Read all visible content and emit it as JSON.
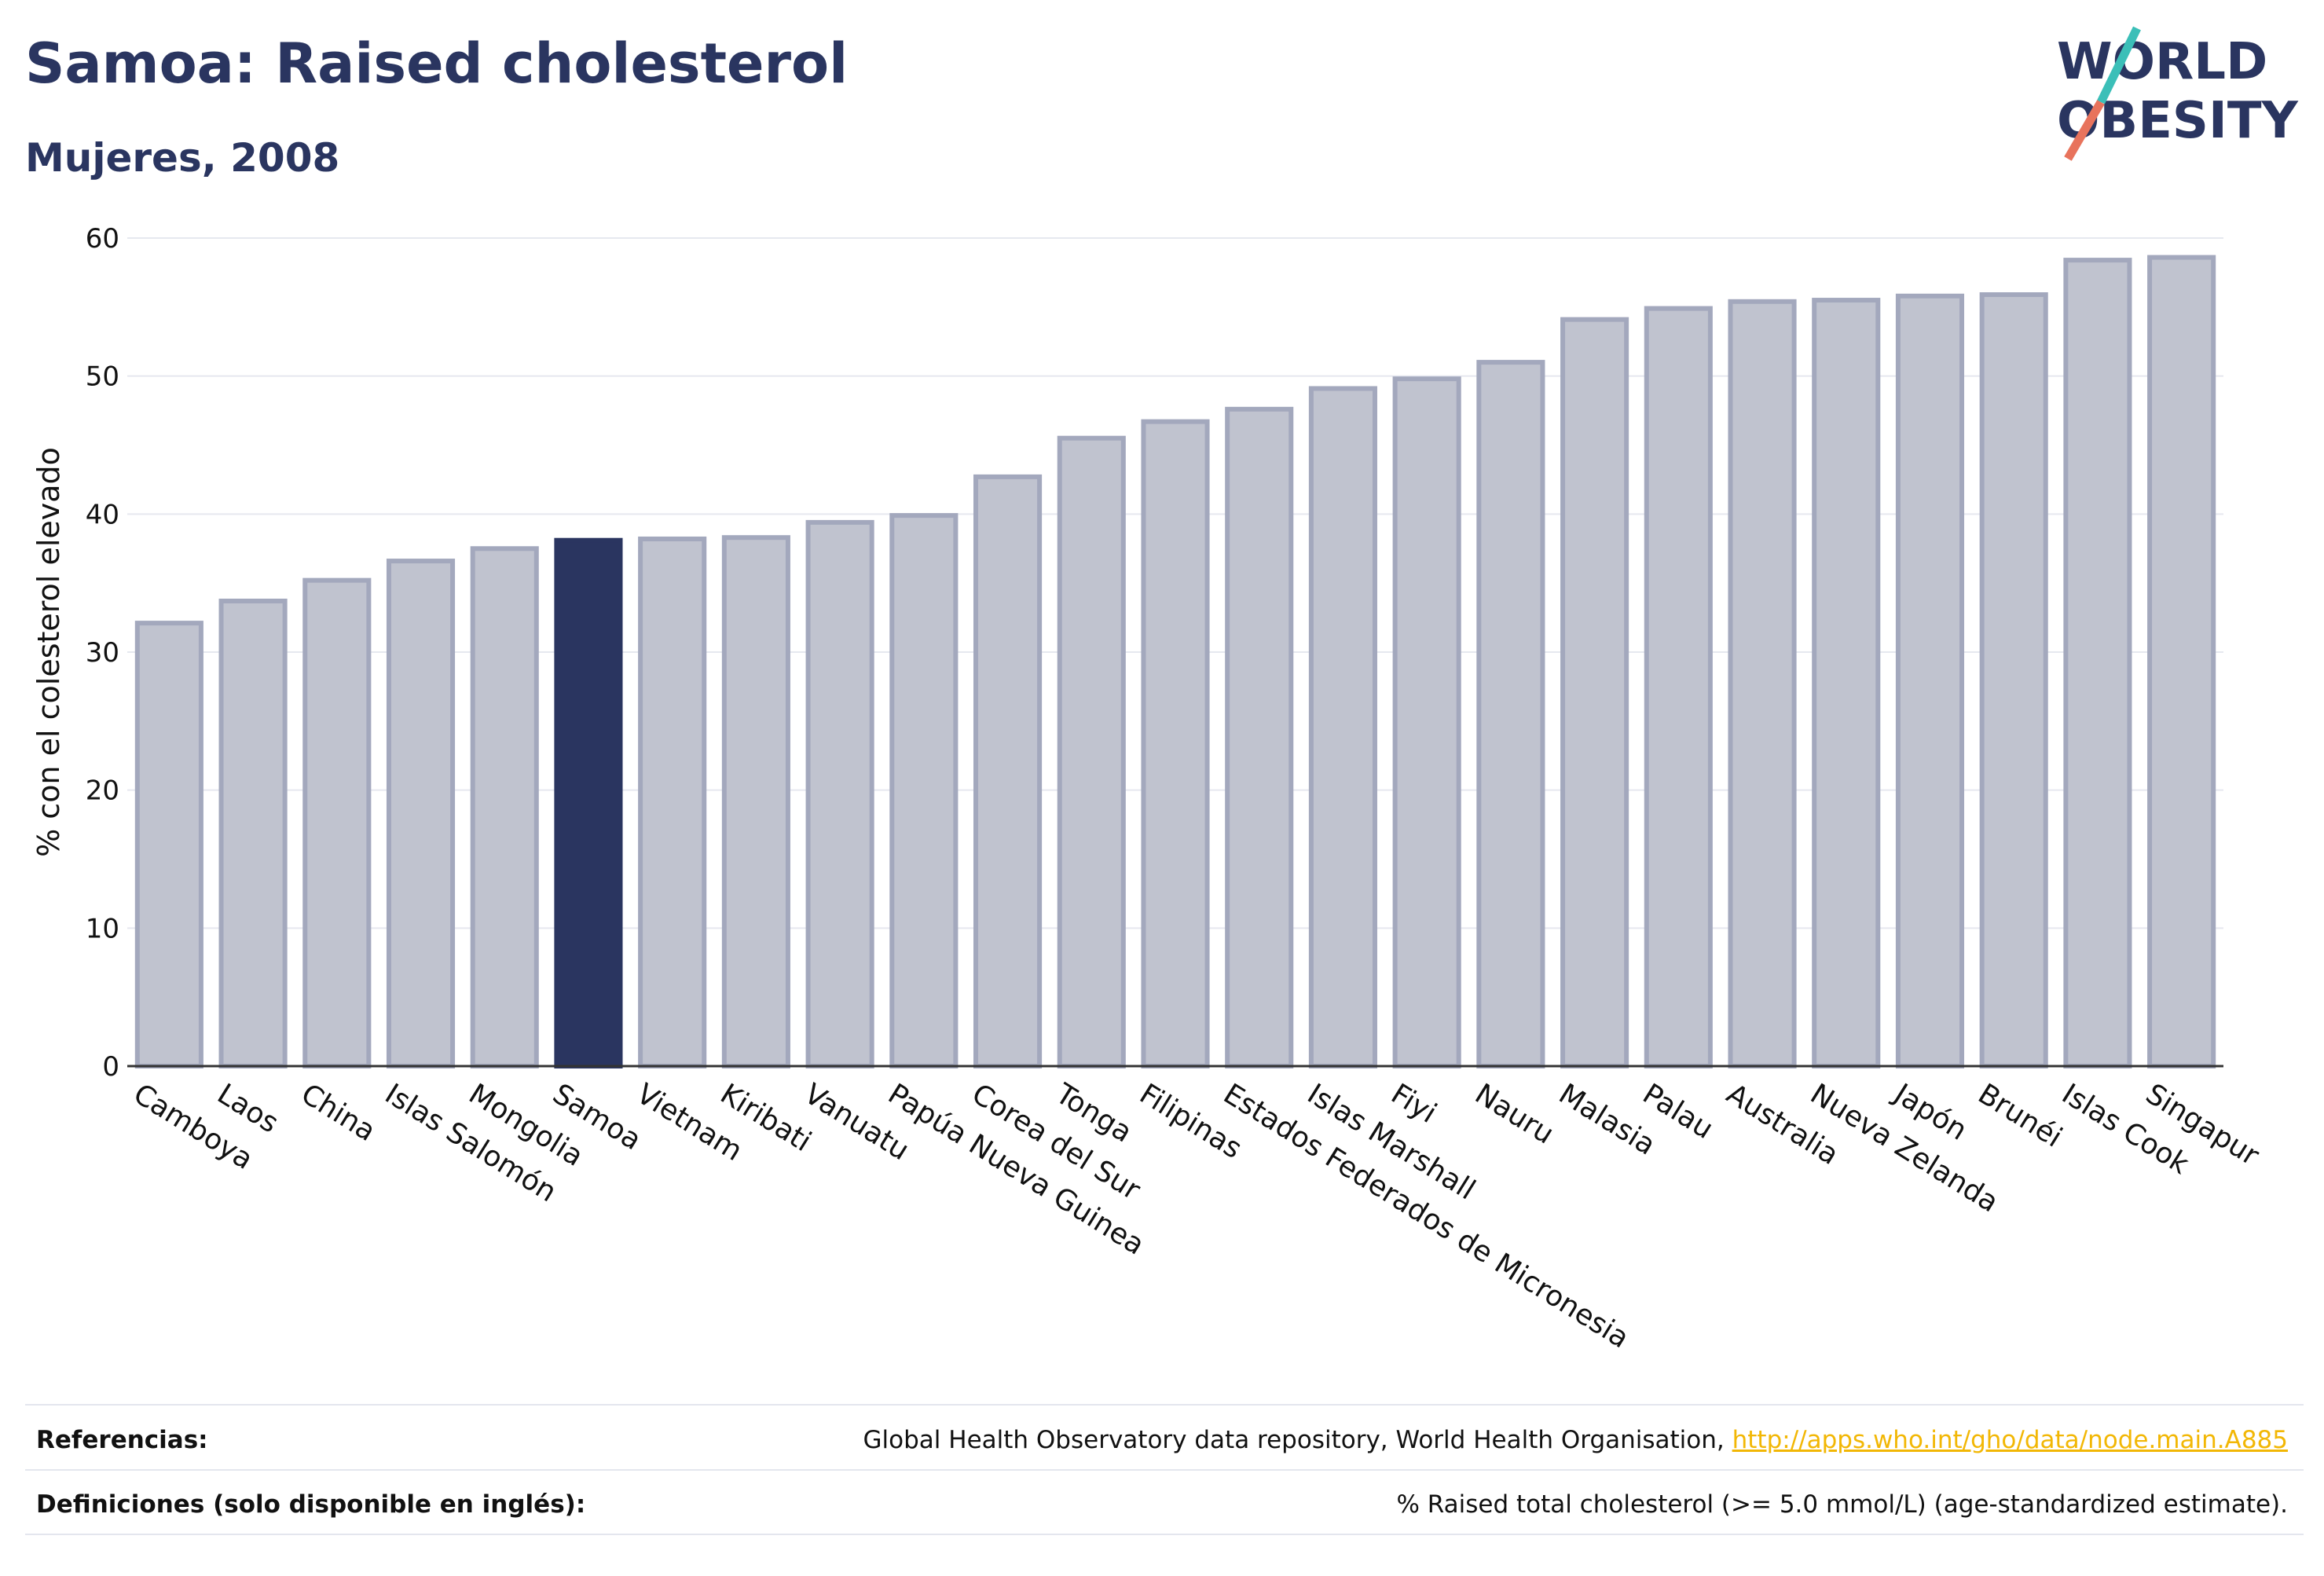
{
  "header": {
    "title": "Samoa: Raised cholesterol",
    "subtitle": "Mujeres, 2008"
  },
  "logo": {
    "line1": "WORLD",
    "line2": "OBESITY",
    "color_text": "#2a3560",
    "color_slash_top": "#3bbfb8",
    "color_slash_bottom": "#e8735c"
  },
  "chart_data": {
    "type": "bar",
    "ylabel": "% con el colesterol elevado",
    "ylim": [
      0,
      60
    ],
    "yticks": [
      0,
      10,
      20,
      30,
      40,
      50,
      60
    ],
    "grid": true,
    "highlight": "Samoa",
    "colors": {
      "bar": "#c0c3cf",
      "bar_stroke": "#a3a8bd",
      "highlight": "#2a3560"
    },
    "categories": [
      "Camboya",
      "Laos",
      "China",
      "Islas Salomón",
      "Mongolia",
      "Samoa",
      "Vietnam",
      "Kiribati",
      "Vanuatu",
      "Papúa Nueva Guinea",
      "Corea del Sur",
      "Tonga",
      "Filipinas",
      "Estados Federados de Micronesia",
      "Islas Marshall",
      "Fiyi",
      "Nauru",
      "Malasia",
      "Palau",
      "Australia",
      "Nueva Zelanda",
      "Japón",
      "Brunéi",
      "Islas Cook",
      "Singapur"
    ],
    "values": [
      32.1,
      33.7,
      35.2,
      36.6,
      37.5,
      38.1,
      38.2,
      38.3,
      39.4,
      39.9,
      42.7,
      45.5,
      46.7,
      47.6,
      49.1,
      49.8,
      51.0,
      54.1,
      54.9,
      55.4,
      55.5,
      55.8,
      55.9,
      58.4,
      58.6
    ]
  },
  "footer": {
    "references_label": "Referencias:",
    "references_text": "Global Health Observatory data repository, World Health Organisation, ",
    "references_link": "http://apps.who.int/gho/data/node.main.A885",
    "definitions_label": "Definiciones (solo disponible en inglés):",
    "definitions_text": "% Raised total cholesterol (>= 5.0 mmol/L) (age-standardized estimate)."
  }
}
